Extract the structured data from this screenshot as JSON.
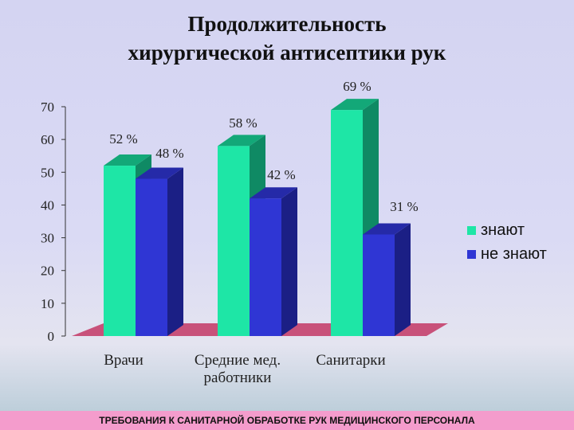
{
  "slide": {
    "title_line1": "Продолжительность",
    "title_line2": "хирургической антисептики рук",
    "footer": "ТРЕБОВАНИЯ К САНИТАРНОЙ ОБРАБОТКЕ РУК МЕДИЦИНСКОГО ПЕРСОНАЛА"
  },
  "chart_data": {
    "type": "bar",
    "categories": [
      "Врачи",
      "Средние мед. работники",
      "Санитарки"
    ],
    "category_lines": [
      [
        "Врачи"
      ],
      [
        "Средние мед.",
        "работники"
      ],
      [
        "Санитарки"
      ]
    ],
    "series": [
      {
        "name": "знают",
        "values": [
          52,
          58,
          69
        ],
        "labels": [
          "52 %",
          "58 %",
          "69 %"
        ]
      },
      {
        "name": "не знают",
        "values": [
          48,
          42,
          31
        ],
        "labels": [
          "48 %",
          "42 %",
          "31 %"
        ]
      }
    ],
    "yticks": [
      "0",
      "10",
      "20",
      "30",
      "40",
      "50",
      "60",
      "70"
    ],
    "ylim": [
      0,
      70
    ],
    "legend_position": "right",
    "three_d": true,
    "colors": {
      "znayut_front": "#1ee6a6",
      "znayut_side": "#0f8a64",
      "znayut_top": "#13a878",
      "ne_znayut_front": "#2f36d4",
      "ne_znayut_side": "#1b1f85",
      "ne_znayut_top": "#252aa8",
      "floor": "#c8517a"
    }
  }
}
